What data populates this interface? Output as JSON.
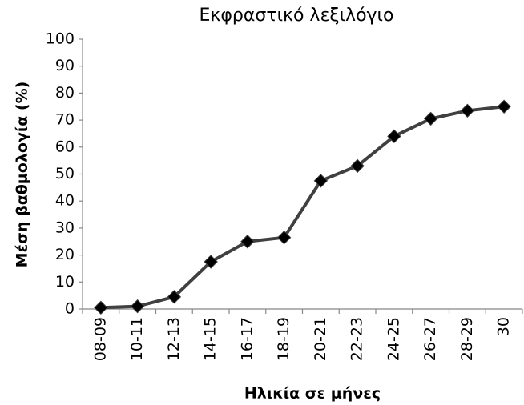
{
  "chart_data": {
    "type": "line",
    "title": "Εκφραστικό λεξιλόγιο",
    "x_label": "Ηλικία σε μήνες",
    "y_label": "Μέση βαθμολογία (%)",
    "categories": [
      "08-09",
      "10-11",
      "12-13",
      "14-15",
      "16-17",
      "18-19",
      "20-21",
      "22-23",
      "24-25",
      "26-27",
      "28-29",
      "30"
    ],
    "values": [
      0.5,
      1,
      4.5,
      17.5,
      25,
      26.5,
      47.5,
      53,
      64,
      70.5,
      73.5,
      75
    ],
    "color": "#404040",
    "marker_color": "#000000",
    "ylim": [
      0,
      100
    ],
    "yticks": [
      0,
      10,
      20,
      30,
      40,
      50,
      60,
      70,
      80,
      90,
      100
    ],
    "grid": false
  }
}
